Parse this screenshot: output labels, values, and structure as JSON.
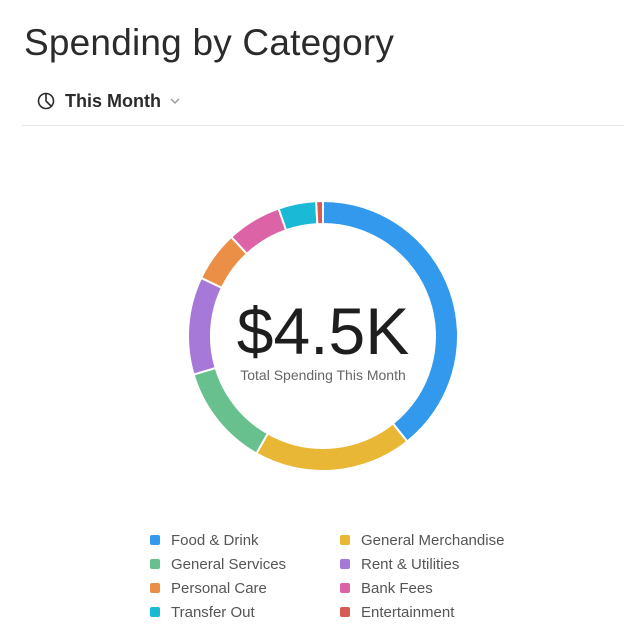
{
  "header": {
    "title": "Spending by Category"
  },
  "period": {
    "icon": "pie-chart-icon",
    "label": "This Month",
    "dropdown_icon": "chevron-down-icon"
  },
  "chart_data": {
    "type": "pie",
    "title": "",
    "center_value": "$4.5K",
    "center_label": "Total Spending This Month",
    "legend_position": "bottom",
    "categories": [
      "Food & Drink",
      "General Merchandise",
      "General Services",
      "Rent & Utilities",
      "Personal Care",
      "Bank Fees",
      "Transfer Out",
      "Entertainment"
    ],
    "values": [
      39.0,
      18.8,
      12.1,
      11.6,
      6.0,
      6.5,
      4.5,
      0.8
    ],
    "colors": [
      "#3399ec",
      "#e9b736",
      "#67c08e",
      "#a679d9",
      "#ea8f45",
      "#dc64a6",
      "#1ab9d6",
      "#d75a55"
    ]
  }
}
